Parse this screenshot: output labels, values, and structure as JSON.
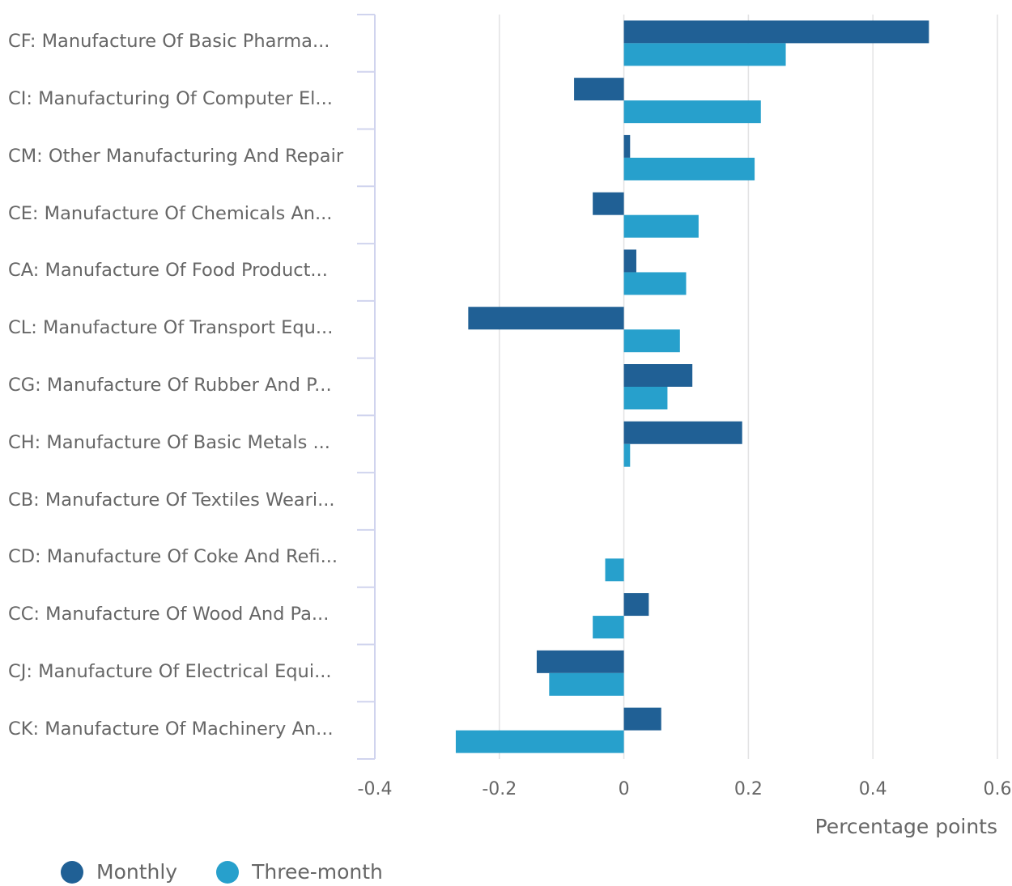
{
  "chart_data": {
    "type": "bar",
    "orientation": "horizontal",
    "categories": [
      "CF: Manufacture Of Basic Pharma...",
      "CI: Manufacturing Of Computer El...",
      "CM: Other Manufacturing And Repair",
      "CE: Manufacture Of Chemicals An...",
      "CA: Manufacture Of Food Product...",
      "CL: Manufacture Of Transport Equ...",
      "CG: Manufacture Of Rubber And P...",
      "CH: Manufacture Of Basic Metals ...",
      "CB: Manufacture Of Textiles Weari...",
      "CD: Manufacture Of Coke And Refi...",
      "CC: Manufacture Of Wood And Pa...",
      "CJ: Manufacture Of Electrical Equi...",
      "CK: Manufacture Of Machinery An..."
    ],
    "series": [
      {
        "name": "Monthly",
        "color": "#206095",
        "values": [
          0.49,
          -0.08,
          0.01,
          -0.05,
          0.02,
          -0.25,
          0.11,
          0.19,
          0.0,
          0.0,
          0.04,
          -0.14,
          0.06
        ]
      },
      {
        "name": "Three-month",
        "color": "#27a0cc",
        "values": [
          0.26,
          0.22,
          0.21,
          0.12,
          0.1,
          0.09,
          0.07,
          0.01,
          0.0,
          -0.03,
          -0.05,
          -0.12,
          -0.27
        ]
      }
    ],
    "xlim": [
      -0.4,
      0.6
    ],
    "xticks": [
      "-0.4",
      "-0.2",
      "0",
      "0.2",
      "0.4",
      "0.6"
    ],
    "xlabel": "Percentage points",
    "ylabel": "",
    "title": "",
    "grid": "vertical",
    "legend_position": "bottom-left"
  }
}
